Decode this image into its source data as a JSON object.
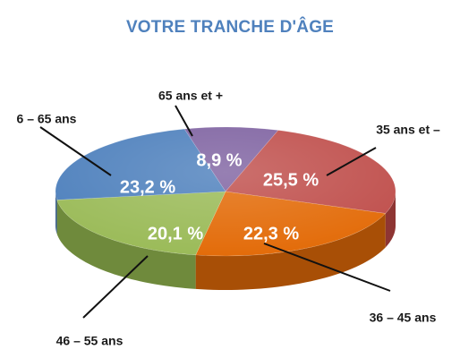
{
  "chart_data": {
    "type": "pie",
    "title": "VOTRE TRANCHE D'ÂGE",
    "slices": [
      {
        "label": "65 ans et +",
        "value": 8.9,
        "value_label": "8,9 %",
        "color": "#8064a2",
        "side_color": "#5e4a78"
      },
      {
        "label": "35 ans et  –",
        "value": 25.5,
        "value_label": "25,5 %",
        "color": "#c0504d",
        "side_color": "#8e3533"
      },
      {
        "label": "36 – 45 ans",
        "value": 22.3,
        "value_label": "22,3 %",
        "color": "#e36c0a",
        "side_color": "#a84f06"
      },
      {
        "label": "46 – 55 ans",
        "value": 20.1,
        "value_label": "20,1 %",
        "color": "#9bbb59",
        "side_color": "#6f8a3c"
      },
      {
        "label": "6 – 65 ans",
        "value": 23.2,
        "value_label": "23,2 %",
        "color": "#4f81bd",
        "side_color": "#3a5f8c"
      }
    ]
  }
}
